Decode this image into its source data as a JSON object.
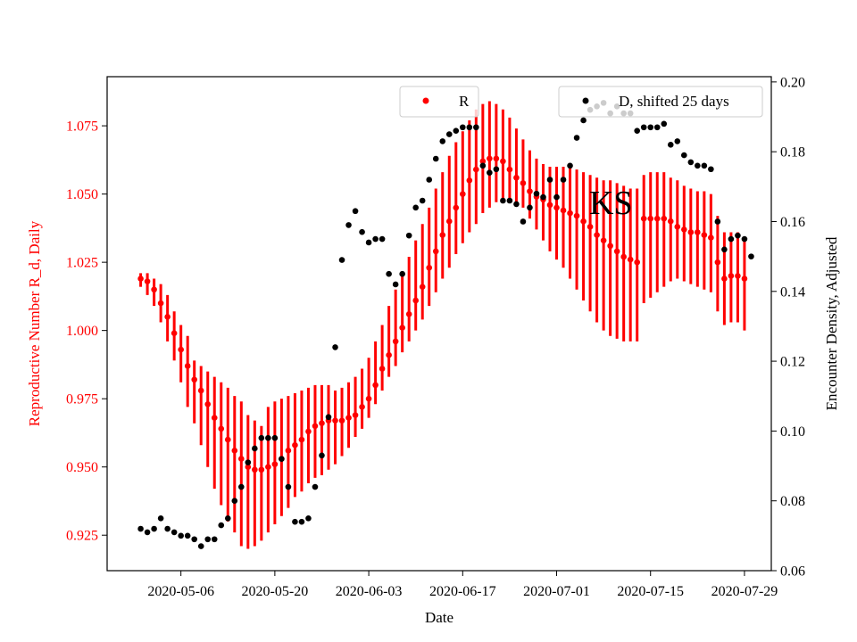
{
  "chart_data": {
    "type": "scatter",
    "title": "",
    "xlabel": "Date",
    "ylabel_left": "Reproductive Number R_d, Daily",
    "ylabel_right": "Encounter Density, Adjusted",
    "annotation": "KS",
    "x_ticks": [
      "2020-05-06",
      "2020-05-20",
      "2020-06-03",
      "2020-06-17",
      "2020-07-01",
      "2020-07-15",
      "2020-07-29"
    ],
    "y_left_ticks": [
      "0.925",
      "0.950",
      "0.975",
      "1.000",
      "1.025",
      "1.050",
      "1.075"
    ],
    "y_right_ticks": [
      "0.06",
      "0.08",
      "0.10",
      "0.12",
      "0.14",
      "0.16",
      "0.18",
      "0.20"
    ],
    "x_range": [
      "2020-04-25",
      "2020-08-02"
    ],
    "y_left_range": [
      0.912,
      1.093
    ],
    "y_right_range": [
      0.06,
      0.2015
    ],
    "grid": false,
    "legend_placement": "top-right",
    "colors": {
      "R": "#ff0000",
      "D": "#000000",
      "left_axis": "#ff0000",
      "right_axis": "#000000"
    },
    "series": [
      {
        "name": "R",
        "axis": "left",
        "color": "#ff0000",
        "start_date": "2020-04-30",
        "values": [
          1.019,
          1.018,
          1.015,
          1.01,
          1.005,
          0.999,
          0.993,
          0.987,
          0.982,
          0.978,
          0.973,
          0.968,
          0.964,
          0.96,
          0.956,
          0.953,
          0.95,
          0.949,
          0.949,
          0.95,
          0.951,
          0.953,
          0.956,
          0.958,
          0.96,
          0.963,
          0.965,
          0.966,
          0.967,
          0.967,
          0.967,
          0.968,
          0.969,
          0.972,
          0.975,
          0.98,
          0.986,
          0.991,
          0.996,
          1.001,
          1.006,
          1.011,
          1.016,
          1.023,
          1.029,
          1.035,
          1.04,
          1.045,
          1.05,
          1.055,
          1.059,
          1.062,
          1.063,
          1.063,
          1.062,
          1.059,
          1.056,
          1.054,
          1.051,
          1.049,
          1.048,
          1.046,
          1.045,
          1.044,
          1.043,
          1.042,
          1.04,
          1.038,
          1.035,
          1.033,
          1.031,
          1.029,
          1.027,
          1.026,
          1.025,
          1.041,
          1.041,
          1.041,
          1.041,
          1.04,
          1.038,
          1.037,
          1.036,
          1.036,
          1.035,
          1.034,
          1.025,
          1.019,
          1.02,
          1.02,
          1.019
        ],
        "lower": [
          1.016,
          1.013,
          1.009,
          1.003,
          0.996,
          0.989,
          0.981,
          0.972,
          0.966,
          0.958,
          0.95,
          0.942,
          0.936,
          0.93,
          0.926,
          0.921,
          0.92,
          0.921,
          0.923,
          0.926,
          0.929,
          0.932,
          0.935,
          0.939,
          0.941,
          0.944,
          0.946,
          0.947,
          0.949,
          0.951,
          0.954,
          0.957,
          0.961,
          0.964,
          0.968,
          0.973,
          0.978,
          0.983,
          0.987,
          0.992,
          0.996,
          1.0,
          1.004,
          1.009,
          1.014,
          1.019,
          1.023,
          1.028,
          1.032,
          1.036,
          1.039,
          1.043,
          1.045,
          1.047,
          1.048,
          1.048,
          1.047,
          1.045,
          1.041,
          1.037,
          1.033,
          1.029,
          1.026,
          1.023,
          1.019,
          1.015,
          1.011,
          1.007,
          1.003,
          1.0,
          0.998,
          0.997,
          0.996,
          0.996,
          0.996,
          1.01,
          1.012,
          1.014,
          1.016,
          1.018,
          1.019,
          1.018,
          1.017,
          1.016,
          1.015,
          1.014,
          1.007,
          1.002,
          1.003,
          1.003,
          1.0
        ],
        "upper": [
          1.021,
          1.021,
          1.019,
          1.017,
          1.013,
          1.007,
          1.002,
          0.998,
          0.989,
          0.987,
          0.985,
          0.983,
          0.981,
          0.979,
          0.976,
          0.974,
          0.969,
          0.967,
          0.965,
          0.972,
          0.974,
          0.975,
          0.976,
          0.977,
          0.978,
          0.979,
          0.98,
          0.98,
          0.98,
          0.978,
          0.979,
          0.981,
          0.983,
          0.986,
          0.99,
          0.996,
          1.002,
          1.009,
          1.015,
          1.021,
          1.027,
          1.033,
          1.039,
          1.045,
          1.052,
          1.058,
          1.064,
          1.069,
          1.073,
          1.077,
          1.081,
          1.083,
          1.084,
          1.083,
          1.081,
          1.078,
          1.074,
          1.07,
          1.066,
          1.063,
          1.061,
          1.06,
          1.06,
          1.06,
          1.06,
          1.059,
          1.058,
          1.057,
          1.056,
          1.055,
          1.055,
          1.054,
          1.053,
          1.052,
          1.052,
          1.057,
          1.058,
          1.058,
          1.058,
          1.056,
          1.055,
          1.053,
          1.052,
          1.051,
          1.051,
          1.05,
          1.042,
          1.036,
          1.036,
          1.036,
          1.033
        ]
      },
      {
        "name": "D, shifted 25 days",
        "axis": "right",
        "color": "#000000",
        "start_date": "2020-04-30",
        "values": [
          0.072,
          0.071,
          0.072,
          0.075,
          0.072,
          0.071,
          0.07,
          0.07,
          0.069,
          0.067,
          0.069,
          0.069,
          0.073,
          0.075,
          0.08,
          0.084,
          0.091,
          0.095,
          0.098,
          0.098,
          0.098,
          0.092,
          0.084,
          0.074,
          0.074,
          0.075,
          0.084,
          0.093,
          0.104,
          0.124,
          0.149,
          0.159,
          0.163,
          0.157,
          0.154,
          0.155,
          0.155,
          0.145,
          0.142,
          0.145,
          0.156,
          0.164,
          0.166,
          0.172,
          0.178,
          0.183,
          0.185,
          0.186,
          0.187,
          0.187,
          0.187,
          0.176,
          0.174,
          0.175,
          0.166,
          0.166,
          0.165,
          0.16,
          0.164,
          0.168,
          0.167,
          0.172,
          0.167,
          0.172,
          0.176,
          0.184,
          0.189,
          0.192,
          0.193,
          0.194,
          0.191,
          0.193,
          0.191,
          0.191,
          0.186,
          0.187,
          0.187,
          0.187,
          0.188,
          0.182,
          0.183,
          0.179,
          0.177,
          0.176,
          0.176,
          0.175,
          0.16,
          0.152,
          0.155,
          0.156,
          0.155,
          0.15
        ]
      }
    ]
  }
}
